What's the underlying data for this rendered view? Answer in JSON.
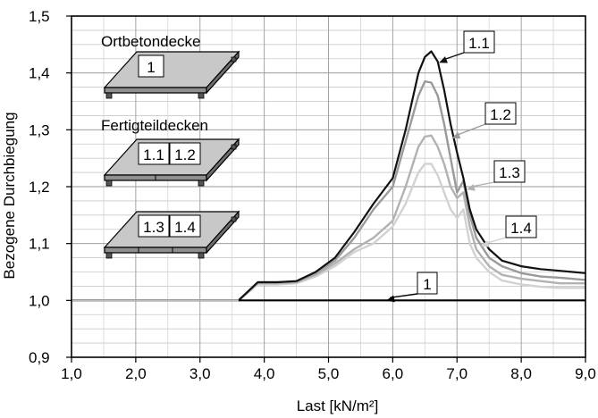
{
  "chart_data": {
    "type": "line",
    "xlabel": "Last  [kN/m²]",
    "ylabel": "Bezogene  Durchbiegung",
    "xlim": [
      1.0,
      9.0
    ],
    "ylim": [
      0.9,
      1.5
    ],
    "x_ticks": [
      "1,0",
      "2,0",
      "3,0",
      "4,0",
      "5,0",
      "6,0",
      "7,0",
      "8,0",
      "9,0"
    ],
    "y_ticks": [
      "0,9",
      "1,0",
      "1,1",
      "1,2",
      "1,3",
      "1,4",
      "1,5"
    ],
    "grid": true,
    "series_colors": {
      "1": "#000000",
      "1.1": "#111111",
      "1.2": "#9a9a9a",
      "1.3": "#b2b2b2",
      "1.4": "#d2d2d2"
    },
    "series": [
      {
        "name": "1",
        "x": [
          1.0,
          3.6,
          3.9,
          9.0
        ],
        "y": [
          1.0,
          1.0,
          1.0,
          1.0
        ]
      },
      {
        "name": "1.1",
        "x": [
          1.0,
          3.6,
          3.9,
          4.2,
          4.5,
          4.8,
          5.1,
          5.4,
          5.7,
          6.0,
          6.2,
          6.4,
          6.5,
          6.6,
          6.7,
          6.8,
          6.9,
          7.0,
          7.1,
          7.2,
          7.3,
          7.5,
          7.7,
          8.0,
          8.3,
          8.6,
          9.0
        ],
        "y": [
          1.0,
          1.0,
          1.032,
          1.032,
          1.034,
          1.05,
          1.075,
          1.12,
          1.17,
          1.215,
          1.3,
          1.4,
          1.428,
          1.438,
          1.42,
          1.37,
          1.31,
          1.26,
          1.215,
          1.16,
          1.125,
          1.09,
          1.07,
          1.06,
          1.055,
          1.052,
          1.048
        ]
      },
      {
        "name": "1.2",
        "x": [
          1.0,
          3.6,
          3.9,
          4.2,
          4.5,
          4.8,
          5.1,
          5.4,
          5.7,
          6.0,
          6.2,
          6.4,
          6.5,
          6.6,
          6.7,
          6.8,
          6.9,
          7.0,
          7.1,
          7.2,
          7.3,
          7.5,
          7.7,
          8.0,
          8.3,
          8.6,
          9.0
        ],
        "y": [
          1.0,
          1.0,
          1.032,
          1.032,
          1.033,
          1.048,
          1.07,
          1.11,
          1.16,
          1.2,
          1.28,
          1.36,
          1.385,
          1.383,
          1.36,
          1.31,
          1.25,
          1.19,
          1.21,
          1.15,
          1.11,
          1.075,
          1.06,
          1.048,
          1.042,
          1.04,
          1.036
        ]
      },
      {
        "name": "1.3",
        "x": [
          1.0,
          3.6,
          3.9,
          4.2,
          4.5,
          4.8,
          5.1,
          5.4,
          5.7,
          6.0,
          6.2,
          6.4,
          6.5,
          6.6,
          6.7,
          6.8,
          6.9,
          7.0,
          7.1,
          7.2,
          7.3,
          7.5,
          7.7,
          8.0,
          8.3,
          8.6,
          9.0
        ],
        "y": [
          1.0,
          1.0,
          1.03,
          1.03,
          1.032,
          1.045,
          1.065,
          1.09,
          1.11,
          1.14,
          1.2,
          1.27,
          1.288,
          1.29,
          1.27,
          1.24,
          1.2,
          1.18,
          1.19,
          1.13,
          1.09,
          1.06,
          1.045,
          1.038,
          1.034,
          1.03,
          1.03
        ]
      },
      {
        "name": "1.4",
        "x": [
          1.0,
          3.6,
          3.9,
          4.2,
          4.5,
          4.8,
          5.1,
          5.4,
          5.7,
          6.0,
          6.2,
          6.4,
          6.5,
          6.6,
          6.7,
          6.8,
          6.9,
          7.0,
          7.1,
          7.2,
          7.3,
          7.5,
          7.7,
          8.0,
          8.3,
          8.6,
          9.0
        ],
        "y": [
          1.0,
          1.0,
          1.028,
          1.028,
          1.03,
          1.042,
          1.06,
          1.085,
          1.1,
          1.13,
          1.17,
          1.225,
          1.24,
          1.24,
          1.22,
          1.19,
          1.16,
          1.145,
          1.16,
          1.1,
          1.075,
          1.05,
          1.035,
          1.028,
          1.024,
          1.022,
          1.022
        ]
      }
    ],
    "callouts": [
      {
        "label": "1.1",
        "target_x": 6.72,
        "target_y": 1.418
      },
      {
        "label": "1.2",
        "target_x": 6.92,
        "target_y": 1.285
      },
      {
        "label": "1.3",
        "target_x": 7.15,
        "target_y": 1.195
      },
      {
        "label": "1.4",
        "target_x": 7.37,
        "target_y": 1.095
      },
      {
        "label": "1",
        "target_x": 5.9,
        "target_y": 1.0
      }
    ]
  },
  "inset": {
    "heading_1": "Ortbetondecke",
    "slab_1_labels": [
      "1"
    ],
    "heading_2": "Fertigteildecken",
    "slab_2_labels": [
      "1.1",
      "1.2"
    ],
    "slab_3_labels": [
      "1.3",
      "1.4"
    ]
  }
}
